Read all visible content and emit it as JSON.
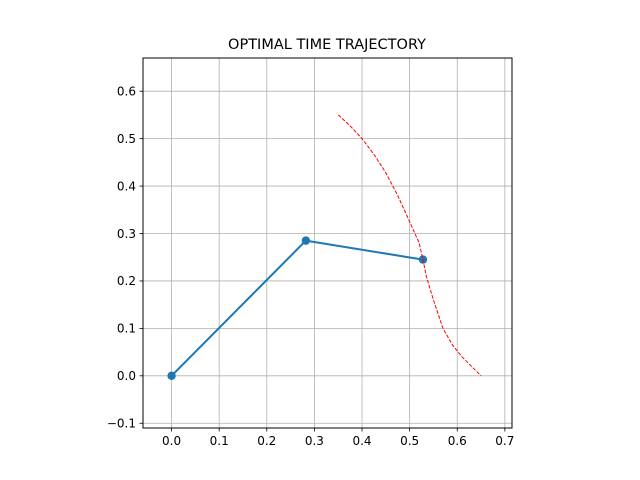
{
  "chart_data": {
    "type": "line",
    "title": "OPTIMAL TIME TRAJECTORY",
    "xlabel": "",
    "ylabel": "",
    "xlim": [
      -0.06,
      0.715
    ],
    "ylim": [
      -0.11,
      0.67
    ],
    "grid": true,
    "x_ticks": [
      0.0,
      0.1,
      0.2,
      0.3,
      0.4,
      0.5,
      0.6,
      0.7
    ],
    "x_tick_labels": [
      "0.0",
      "0.1",
      "0.2",
      "0.3",
      "0.4",
      "0.5",
      "0.6",
      "0.7"
    ],
    "y_ticks": [
      -0.1,
      0.0,
      0.1,
      0.2,
      0.3,
      0.4,
      0.5,
      0.6
    ],
    "y_tick_labels": [
      "−0.1",
      "0.0",
      "0.1",
      "0.2",
      "0.3",
      "0.4",
      "0.5",
      "0.6"
    ],
    "series": [
      {
        "role": "arm",
        "style": "solid-with-markers",
        "color": "#1f77b4",
        "x": [
          0.0,
          0.282,
          0.528
        ],
        "y": [
          0.0,
          0.285,
          0.245
        ]
      },
      {
        "role": "trajectory",
        "style": "dashed",
        "color": "#ff0000",
        "x": [
          0.35,
          0.375,
          0.4,
          0.425,
          0.45,
          0.475,
          0.5,
          0.52,
          0.528,
          0.535,
          0.55,
          0.57,
          0.59,
          0.61,
          0.63,
          0.65
        ],
        "y": [
          0.55,
          0.527,
          0.5,
          0.467,
          0.428,
          0.38,
          0.325,
          0.28,
          0.245,
          0.21,
          0.16,
          0.1,
          0.065,
          0.04,
          0.02,
          0.0
        ]
      }
    ]
  }
}
